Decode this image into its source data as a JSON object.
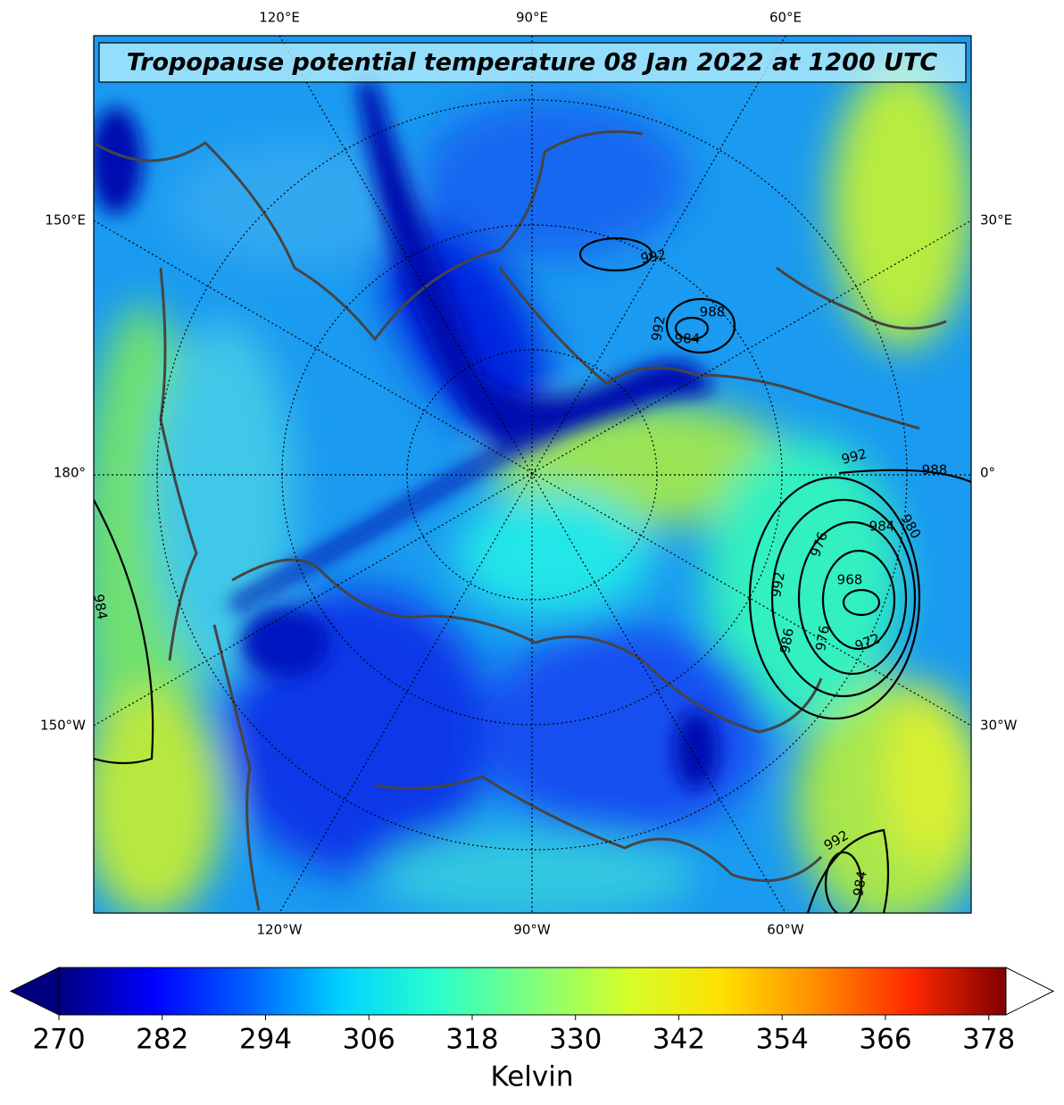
{
  "title": "Tropopause potential temperature 08 Jan 2022 at 1200 UTC",
  "graticule": {
    "top": [
      "120°E",
      "90°E",
      "60°E"
    ],
    "bottom": [
      "120°W",
      "90°W",
      "60°W"
    ],
    "left": [
      "150°E",
      "180°",
      "150°W"
    ],
    "right": [
      "30°E",
      "0°",
      "30°W"
    ]
  },
  "contour_labels": [
    "992",
    "988",
    "992",
    "984",
    "992",
    "988",
    "984",
    "980",
    "976",
    "968",
    "972",
    "976",
    "992",
    "986",
    "984",
    "992",
    "984"
  ],
  "colorbar": {
    "range": [
      270,
      380
    ],
    "ticks": [
      270,
      282,
      294,
      306,
      318,
      330,
      342,
      354,
      366,
      378
    ],
    "label": "Kelvin"
  }
}
